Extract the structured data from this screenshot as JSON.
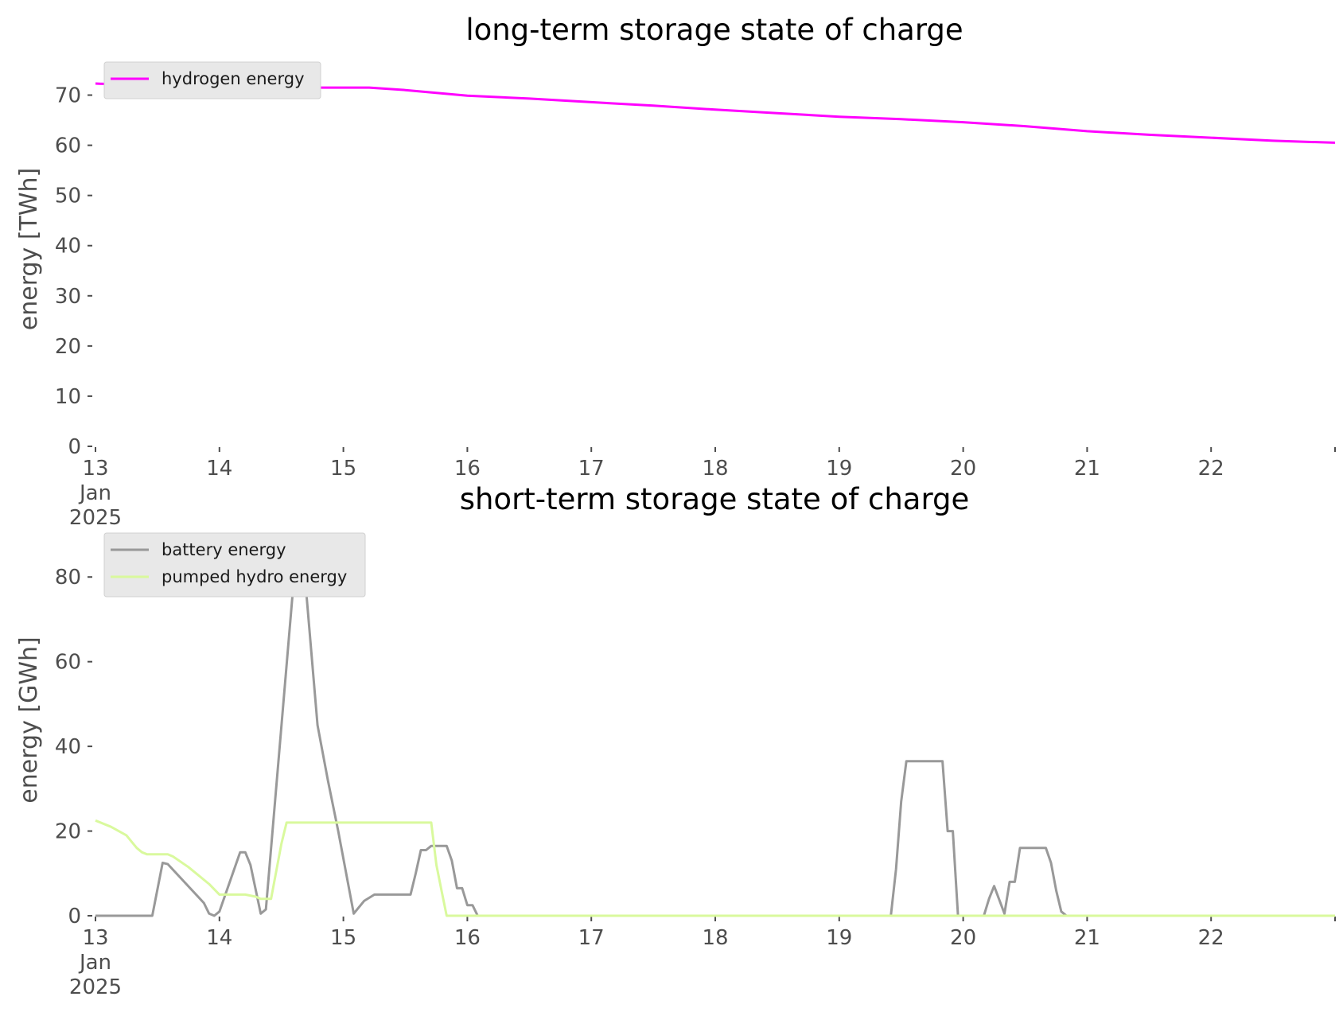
{
  "chart_data": [
    {
      "type": "line",
      "title": "long-term storage state of charge",
      "xlabel": "",
      "ylabel": "energy [TWh]",
      "xlim": [
        "2025-01-13 00:00",
        "2025-01-23 00:00"
      ],
      "ylim": [
        0,
        75
      ],
      "x_ticks": [
        {
          "x": "2025-01-13",
          "label": [
            "13",
            "Jan",
            "2025"
          ]
        },
        {
          "x": "2025-01-14",
          "label": [
            "14"
          ]
        },
        {
          "x": "2025-01-15",
          "label": [
            "15"
          ]
        },
        {
          "x": "2025-01-16",
          "label": [
            "16"
          ]
        },
        {
          "x": "2025-01-17",
          "label": [
            "17"
          ]
        },
        {
          "x": "2025-01-18",
          "label": [
            "18"
          ]
        },
        {
          "x": "2025-01-19",
          "label": [
            "19"
          ]
        },
        {
          "x": "2025-01-20",
          "label": [
            "20"
          ]
        },
        {
          "x": "2025-01-21",
          "label": [
            "21"
          ]
        },
        {
          "x": "2025-01-22",
          "label": [
            "22"
          ]
        },
        {
          "x": "2025-01-23",
          "label": [
            ""
          ]
        }
      ],
      "y_ticks": [
        0,
        10,
        20,
        30,
        40,
        50,
        60,
        70
      ],
      "grid": false,
      "legend_position": "top-left",
      "series": [
        {
          "name": "hydrogen energy",
          "color": "#ff00ff",
          "points": [
            [
              "2025-01-13 00:00",
              72.3
            ],
            [
              "2025-01-13 12:00",
              71.8
            ],
            [
              "2025-01-14 00:00",
              71.6
            ],
            [
              "2025-01-14 12:00",
              71.5
            ],
            [
              "2025-01-15 00:00",
              71.5
            ],
            [
              "2025-01-15 05:00",
              71.5
            ],
            [
              "2025-01-15 12:00",
              71.0
            ],
            [
              "2025-01-16 00:00",
              69.9
            ],
            [
              "2025-01-16 12:00",
              69.3
            ],
            [
              "2025-01-17 00:00",
              68.6
            ],
            [
              "2025-01-17 12:00",
              67.9
            ],
            [
              "2025-01-18 00:00",
              67.1
            ],
            [
              "2025-01-18 12:00",
              66.4
            ],
            [
              "2025-01-19 00:00",
              65.7
            ],
            [
              "2025-01-19 12:00",
              65.2
            ],
            [
              "2025-01-20 00:00",
              64.6
            ],
            [
              "2025-01-20 12:00",
              63.8
            ],
            [
              "2025-01-21 00:00",
              62.8
            ],
            [
              "2025-01-21 12:00",
              62.1
            ],
            [
              "2025-01-22 00:00",
              61.5
            ],
            [
              "2025-01-22 12:00",
              60.9
            ],
            [
              "2025-01-23 00:00",
              60.5
            ]
          ]
        }
      ]
    },
    {
      "type": "line",
      "title": "short-term storage state of charge",
      "xlabel": "",
      "ylabel": "energy [GWh]",
      "xlim": [
        "2025-01-13 00:00",
        "2025-01-23 00:00"
      ],
      "ylim": [
        0,
        90
      ],
      "x_ticks": [
        {
          "x": "2025-01-13",
          "label": [
            "13",
            "Jan",
            "2025"
          ]
        },
        {
          "x": "2025-01-14",
          "label": [
            "14"
          ]
        },
        {
          "x": "2025-01-15",
          "label": [
            "15"
          ]
        },
        {
          "x": "2025-01-16",
          "label": [
            "16"
          ]
        },
        {
          "x": "2025-01-17",
          "label": [
            "17"
          ]
        },
        {
          "x": "2025-01-18",
          "label": [
            "18"
          ]
        },
        {
          "x": "2025-01-19",
          "label": [
            "19"
          ]
        },
        {
          "x": "2025-01-20",
          "label": [
            "20"
          ]
        },
        {
          "x": "2025-01-21",
          "label": [
            "21"
          ]
        },
        {
          "x": "2025-01-22",
          "label": [
            "22"
          ]
        },
        {
          "x": "2025-01-23",
          "label": [
            ""
          ]
        }
      ],
      "y_ticks": [
        0,
        20,
        40,
        60,
        80
      ],
      "grid": false,
      "legend_position": "top-left",
      "series": [
        {
          "name": "battery energy",
          "color": "#999999",
          "points": [
            [
              "2025-01-13 00:00",
              0
            ],
            [
              "2025-01-13 11:00",
              0
            ],
            [
              "2025-01-13 13:00",
              12.5
            ],
            [
              "2025-01-13 14:00",
              12.2
            ],
            [
              "2025-01-13 21:00",
              3
            ],
            [
              "2025-01-13 22:00",
              0.5
            ],
            [
              "2025-01-13 23:00",
              0
            ],
            [
              "2025-01-14 00:00",
              1
            ],
            [
              "2025-01-14 04:00",
              15
            ],
            [
              "2025-01-14 05:00",
              15
            ],
            [
              "2025-01-14 06:00",
              12
            ],
            [
              "2025-01-14 08:00",
              0.5
            ],
            [
              "2025-01-14 09:00",
              1.5
            ],
            [
              "2025-01-14 15:00",
              88
            ],
            [
              "2025-01-14 16:00",
              88
            ],
            [
              "2025-01-14 19:00",
              45
            ],
            [
              "2025-01-14 21:00",
              32
            ],
            [
              "2025-01-14 23:00",
              20
            ],
            [
              "2025-01-15 02:00",
              0.5
            ],
            [
              "2025-01-15 04:00",
              3.5
            ],
            [
              "2025-01-15 06:00",
              5
            ],
            [
              "2025-01-15 13:00",
              5
            ],
            [
              "2025-01-15 14:00",
              10
            ],
            [
              "2025-01-15 15:00",
              15.5
            ],
            [
              "2025-01-15 16:00",
              15.5
            ],
            [
              "2025-01-15 17:00",
              16.5
            ],
            [
              "2025-01-15 20:00",
              16.5
            ],
            [
              "2025-01-15 21:00",
              13
            ],
            [
              "2025-01-15 22:00",
              6.5
            ],
            [
              "2025-01-15 23:00",
              6.5
            ],
            [
              "2025-01-16 00:00",
              2.5
            ],
            [
              "2025-01-16 01:00",
              2.5
            ],
            [
              "2025-01-16 02:00",
              0
            ],
            [
              "2025-01-19 10:00",
              0
            ],
            [
              "2025-01-19 11:00",
              11
            ],
            [
              "2025-01-19 12:00",
              27
            ],
            [
              "2025-01-19 13:00",
              36.5
            ],
            [
              "2025-01-19 20:00",
              36.5
            ],
            [
              "2025-01-19 21:00",
              20
            ],
            [
              "2025-01-19 22:00",
              20
            ],
            [
              "2025-01-19 23:00",
              0
            ],
            [
              "2025-01-20 04:00",
              0
            ],
            [
              "2025-01-20 05:00",
              4
            ],
            [
              "2025-01-20 06:00",
              7
            ],
            [
              "2025-01-20 08:00",
              0.5
            ],
            [
              "2025-01-20 09:00",
              8
            ],
            [
              "2025-01-20 10:00",
              8
            ],
            [
              "2025-01-20 11:00",
              16
            ],
            [
              "2025-01-20 16:00",
              16
            ],
            [
              "2025-01-20 17:00",
              12.5
            ],
            [
              "2025-01-20 18:00",
              6
            ],
            [
              "2025-01-20 19:00",
              1
            ],
            [
              "2025-01-20 20:00",
              0
            ],
            [
              "2025-01-23 00:00",
              0
            ]
          ]
        },
        {
          "name": "pumped hydro energy",
          "color": "#d9f99d",
          "points": [
            [
              "2025-01-13 00:00",
              22.5
            ],
            [
              "2025-01-13 03:00",
              21
            ],
            [
              "2025-01-13 06:00",
              19
            ],
            [
              "2025-01-13 07:00",
              17.5
            ],
            [
              "2025-01-13 08:00",
              16
            ],
            [
              "2025-01-13 09:00",
              15
            ],
            [
              "2025-01-13 10:00",
              14.5
            ],
            [
              "2025-01-13 14:00",
              14.5
            ],
            [
              "2025-01-13 15:00",
              14
            ],
            [
              "2025-01-13 18:00",
              11.5
            ],
            [
              "2025-01-13 22:00",
              7.5
            ],
            [
              "2025-01-14 00:00",
              5
            ],
            [
              "2025-01-14 05:00",
              5
            ],
            [
              "2025-01-14 07:00",
              4.5
            ],
            [
              "2025-01-14 08:00",
              4
            ],
            [
              "2025-01-14 09:00",
              4
            ],
            [
              "2025-01-14 10:00",
              4
            ],
            [
              "2025-01-14 12:00",
              17
            ],
            [
              "2025-01-14 13:00",
              22
            ],
            [
              "2025-01-15 16:00",
              22
            ],
            [
              "2025-01-15 17:00",
              22
            ],
            [
              "2025-01-15 18:00",
              12
            ],
            [
              "2025-01-15 19:00",
              6
            ],
            [
              "2025-01-15 20:00",
              0
            ],
            [
              "2025-01-23 00:00",
              0
            ]
          ]
        }
      ]
    }
  ]
}
